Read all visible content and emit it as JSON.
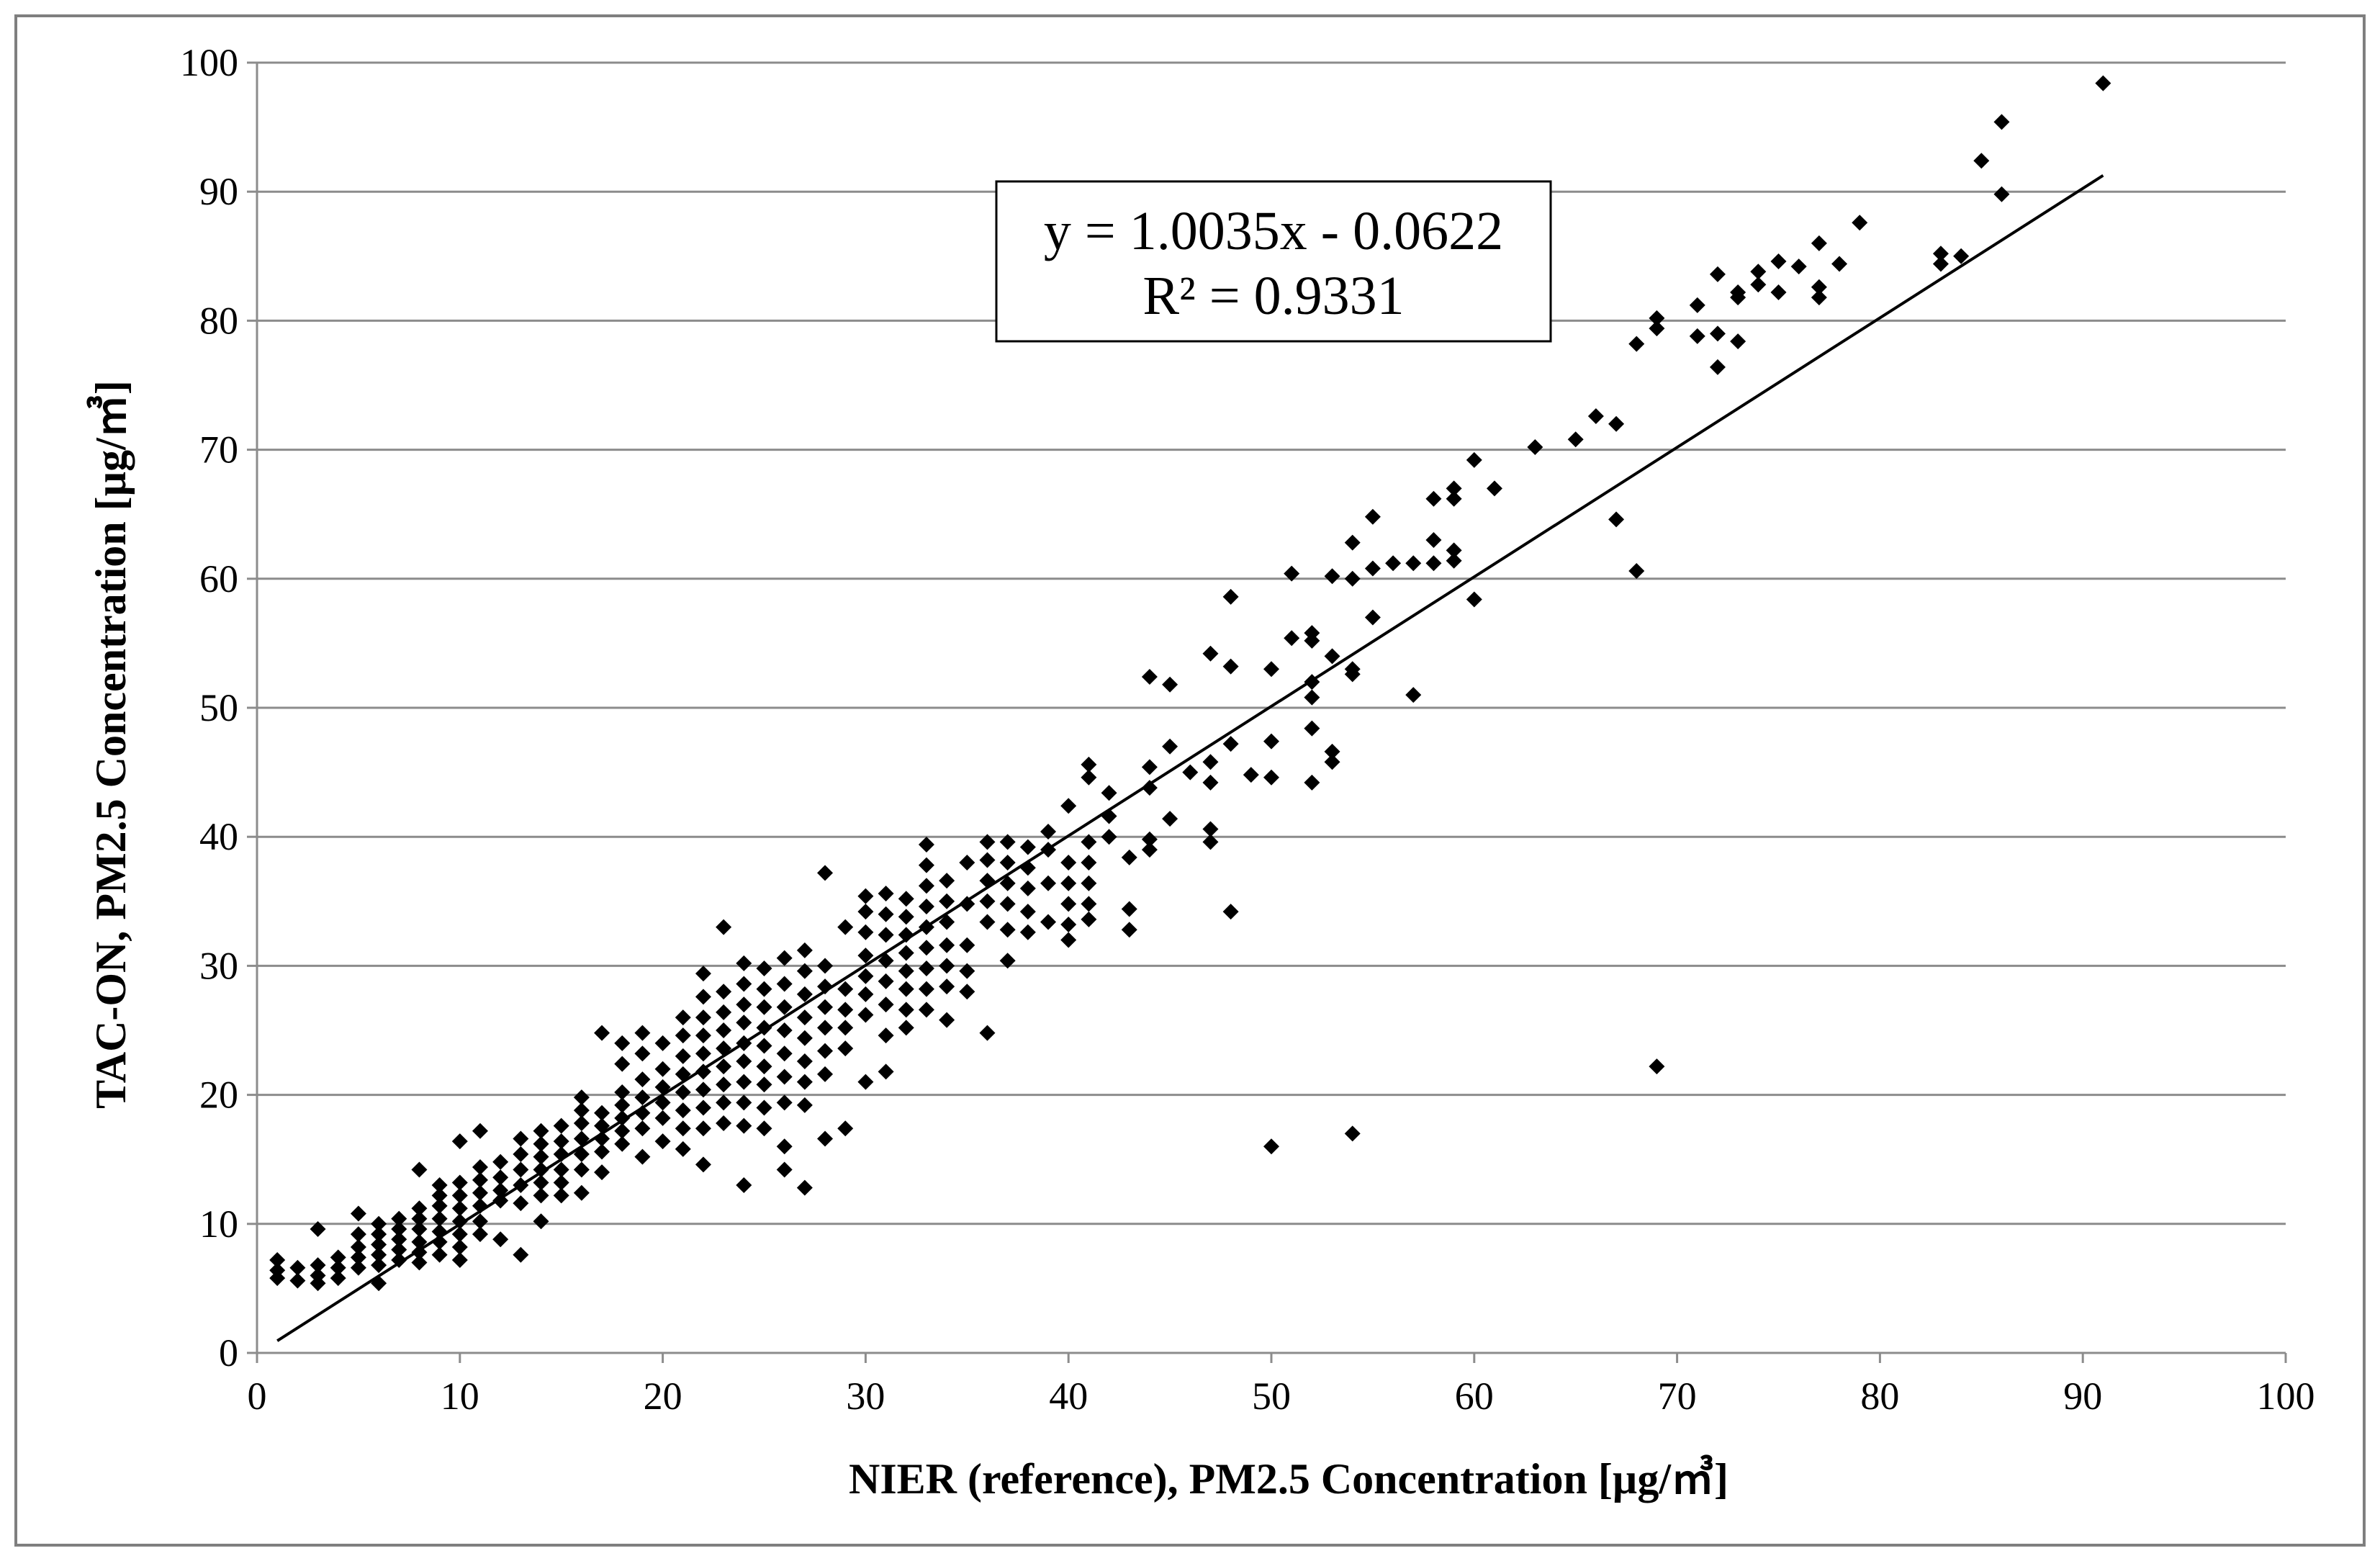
{
  "chart_data": {
    "type": "scatter",
    "xlabel": "NIER (reference), PM2.5 Concentration [µg/㎥]",
    "ylabel": "TAC-ON, PM2.5 Concentration [µg/㎥]",
    "xlim": [
      0,
      100
    ],
    "ylim": [
      0,
      100
    ],
    "x_ticks": [
      0,
      10,
      20,
      30,
      40,
      50,
      60,
      70,
      80,
      90,
      100
    ],
    "y_ticks": [
      0,
      10,
      20,
      30,
      40,
      50,
      60,
      70,
      80,
      90,
      100
    ],
    "grid": "horizontal",
    "marker": "diamond",
    "marker_color": "#000000",
    "trendline": {
      "equation": "y = 1.0035x - 0.0622",
      "r_squared": "R² = 0.9331",
      "slope": 1.0035,
      "intercept": -0.0622,
      "x_range": [
        1,
        91
      ]
    },
    "points": [
      [
        1,
        7.2
      ],
      [
        1,
        6.4
      ],
      [
        1,
        5.8
      ],
      [
        2,
        6.6
      ],
      [
        2,
        5.6
      ],
      [
        3,
        9.6
      ],
      [
        3,
        6.8
      ],
      [
        3,
        6.0
      ],
      [
        3,
        5.4
      ],
      [
        4,
        7.4
      ],
      [
        4,
        6.6
      ],
      [
        4,
        5.8
      ],
      [
        5,
        10.8
      ],
      [
        5,
        9.2
      ],
      [
        5,
        8.2
      ],
      [
        5,
        7.4
      ],
      [
        5,
        6.6
      ],
      [
        6,
        10.0
      ],
      [
        6,
        9.2
      ],
      [
        6,
        8.4
      ],
      [
        6,
        7.6
      ],
      [
        6,
        6.8
      ],
      [
        6,
        5.4
      ],
      [
        7,
        10.4
      ],
      [
        7,
        9.6
      ],
      [
        7,
        8.8
      ],
      [
        7,
        8.0
      ],
      [
        7,
        7.2
      ],
      [
        8,
        14.2
      ],
      [
        8,
        11.2
      ],
      [
        8,
        10.4
      ],
      [
        8,
        9.6
      ],
      [
        8,
        8.6
      ],
      [
        8,
        7.8
      ],
      [
        8,
        7.0
      ],
      [
        9,
        13.0
      ],
      [
        9,
        12.2
      ],
      [
        9,
        11.4
      ],
      [
        9,
        10.4
      ],
      [
        9,
        9.4
      ],
      [
        9,
        8.6
      ],
      [
        9,
        7.6
      ],
      [
        10,
        16.4
      ],
      [
        10,
        13.2
      ],
      [
        10,
        12.2
      ],
      [
        10,
        11.2
      ],
      [
        10,
        10.2
      ],
      [
        10,
        9.2
      ],
      [
        10,
        8.2
      ],
      [
        10,
        7.2
      ],
      [
        11,
        17.2
      ],
      [
        11,
        14.4
      ],
      [
        11,
        13.4
      ],
      [
        11,
        12.4
      ],
      [
        11,
        11.4
      ],
      [
        11,
        10.2
      ],
      [
        11,
        9.2
      ],
      [
        12,
        14.8
      ],
      [
        12,
        13.6
      ],
      [
        12,
        12.6
      ],
      [
        12,
        11.8
      ],
      [
        12,
        8.8
      ],
      [
        13,
        16.6
      ],
      [
        13,
        15.4
      ],
      [
        13,
        14.2
      ],
      [
        13,
        13.0
      ],
      [
        13,
        11.6
      ],
      [
        13,
        7.6
      ],
      [
        14,
        17.2
      ],
      [
        14,
        16.2
      ],
      [
        14,
        15.2
      ],
      [
        14,
        14.2
      ],
      [
        14,
        13.2
      ],
      [
        14,
        12.2
      ],
      [
        14,
        10.2
      ],
      [
        15,
        17.6
      ],
      [
        15,
        16.4
      ],
      [
        15,
        15.4
      ],
      [
        15,
        14.2
      ],
      [
        15,
        13.2
      ],
      [
        15,
        12.2
      ],
      [
        16,
        19.8
      ],
      [
        16,
        18.8
      ],
      [
        16,
        17.8
      ],
      [
        16,
        16.6
      ],
      [
        16,
        15.4
      ],
      [
        16,
        14.2
      ],
      [
        16,
        12.4
      ],
      [
        17,
        24.8
      ],
      [
        17,
        18.6
      ],
      [
        17,
        17.6
      ],
      [
        17,
        16.6
      ],
      [
        17,
        15.6
      ],
      [
        17,
        14.0
      ],
      [
        18,
        24.0
      ],
      [
        18,
        22.4
      ],
      [
        18,
        20.2
      ],
      [
        18,
        19.2
      ],
      [
        18,
        18.2
      ],
      [
        18,
        17.2
      ],
      [
        18,
        16.2
      ],
      [
        19,
        24.8
      ],
      [
        19,
        23.2
      ],
      [
        19,
        21.2
      ],
      [
        19,
        19.8
      ],
      [
        19,
        18.6
      ],
      [
        19,
        17.4
      ],
      [
        19,
        15.2
      ],
      [
        20,
        24.0
      ],
      [
        20,
        22.0
      ],
      [
        20,
        20.6
      ],
      [
        20,
        19.4
      ],
      [
        20,
        18.2
      ],
      [
        20,
        16.4
      ],
      [
        21,
        26.0
      ],
      [
        21,
        24.6
      ],
      [
        21,
        23.0
      ],
      [
        21,
        21.6
      ],
      [
        21,
        20.2
      ],
      [
        21,
        18.8
      ],
      [
        21,
        17.4
      ],
      [
        21,
        15.8
      ],
      [
        22,
        29.4
      ],
      [
        22,
        27.6
      ],
      [
        22,
        26.0
      ],
      [
        22,
        24.6
      ],
      [
        22,
        23.2
      ],
      [
        22,
        21.8
      ],
      [
        22,
        20.4
      ],
      [
        22,
        19.0
      ],
      [
        22,
        17.4
      ],
      [
        22,
        14.6
      ],
      [
        23,
        33.0
      ],
      [
        23,
        28.0
      ],
      [
        23,
        26.4
      ],
      [
        23,
        25.0
      ],
      [
        23,
        23.6
      ],
      [
        23,
        22.2
      ],
      [
        23,
        20.8
      ],
      [
        23,
        19.4
      ],
      [
        23,
        17.8
      ],
      [
        24,
        30.2
      ],
      [
        24,
        28.6
      ],
      [
        24,
        27.0
      ],
      [
        24,
        25.6
      ],
      [
        24,
        24.0
      ],
      [
        24,
        22.6
      ],
      [
        24,
        21.0
      ],
      [
        24,
        19.4
      ],
      [
        24,
        17.6
      ],
      [
        24,
        13.0
      ],
      [
        25,
        29.8
      ],
      [
        25,
        28.2
      ],
      [
        25,
        26.8
      ],
      [
        25,
        25.2
      ],
      [
        25,
        23.8
      ],
      [
        25,
        22.2
      ],
      [
        25,
        20.8
      ],
      [
        25,
        19.0
      ],
      [
        25,
        17.4
      ],
      [
        26,
        30.6
      ],
      [
        26,
        28.6
      ],
      [
        26,
        26.8
      ],
      [
        26,
        25.0
      ],
      [
        26,
        23.2
      ],
      [
        26,
        21.4
      ],
      [
        26,
        19.4
      ],
      [
        26,
        16.0
      ],
      [
        26,
        14.2
      ],
      [
        27,
        31.2
      ],
      [
        27,
        29.6
      ],
      [
        27,
        27.8
      ],
      [
        27,
        26.0
      ],
      [
        27,
        24.4
      ],
      [
        27,
        22.6
      ],
      [
        27,
        21.0
      ],
      [
        27,
        19.2
      ],
      [
        27,
        12.8
      ],
      [
        28,
        37.2
      ],
      [
        28,
        30.0
      ],
      [
        28,
        28.4
      ],
      [
        28,
        26.8
      ],
      [
        28,
        25.2
      ],
      [
        28,
        23.4
      ],
      [
        28,
        21.6
      ],
      [
        28,
        16.6
      ],
      [
        29,
        33.0
      ],
      [
        29,
        28.2
      ],
      [
        29,
        26.6
      ],
      [
        29,
        25.2
      ],
      [
        29,
        23.6
      ],
      [
        29,
        17.4
      ],
      [
        30,
        35.4
      ],
      [
        30,
        34.2
      ],
      [
        30,
        32.6
      ],
      [
        30,
        30.8
      ],
      [
        30,
        29.2
      ],
      [
        30,
        27.8
      ],
      [
        30,
        26.2
      ],
      [
        30,
        21.0
      ],
      [
        31,
        35.6
      ],
      [
        31,
        34.0
      ],
      [
        31,
        32.4
      ],
      [
        31,
        30.4
      ],
      [
        31,
        28.8
      ],
      [
        31,
        27.0
      ],
      [
        31,
        24.6
      ],
      [
        31,
        21.8
      ],
      [
        32,
        35.2
      ],
      [
        32,
        33.8
      ],
      [
        32,
        32.4
      ],
      [
        32,
        31.0
      ],
      [
        32,
        29.6
      ],
      [
        32,
        28.2
      ],
      [
        32,
        26.6
      ],
      [
        32,
        25.2
      ],
      [
        33,
        39.4
      ],
      [
        33,
        37.8
      ],
      [
        33,
        36.2
      ],
      [
        33,
        34.6
      ],
      [
        33,
        33.0
      ],
      [
        33,
        31.4
      ],
      [
        33,
        29.8
      ],
      [
        33,
        28.2
      ],
      [
        33,
        26.6
      ],
      [
        34,
        36.6
      ],
      [
        34,
        35.0
      ],
      [
        34,
        33.4
      ],
      [
        34,
        31.6
      ],
      [
        34,
        30.0
      ],
      [
        34,
        28.4
      ],
      [
        34,
        25.8
      ],
      [
        35,
        38.0
      ],
      [
        35,
        34.8
      ],
      [
        35,
        31.6
      ],
      [
        35,
        29.6
      ],
      [
        35,
        28.0
      ],
      [
        36,
        39.6
      ],
      [
        36,
        38.2
      ],
      [
        36,
        36.6
      ],
      [
        36,
        35.0
      ],
      [
        36,
        33.4
      ],
      [
        36,
        24.8
      ],
      [
        37,
        39.6
      ],
      [
        37,
        38.0
      ],
      [
        37,
        36.4
      ],
      [
        37,
        34.8
      ],
      [
        37,
        32.8
      ],
      [
        37,
        30.4
      ],
      [
        38,
        39.2
      ],
      [
        38,
        37.6
      ],
      [
        38,
        36.0
      ],
      [
        38,
        34.2
      ],
      [
        38,
        32.6
      ],
      [
        39,
        40.4
      ],
      [
        39,
        39.0
      ],
      [
        39,
        36.4
      ],
      [
        39,
        33.4
      ],
      [
        40,
        42.4
      ],
      [
        40,
        38.0
      ],
      [
        40,
        36.4
      ],
      [
        40,
        34.8
      ],
      [
        40,
        33.2
      ],
      [
        40,
        32.0
      ],
      [
        41,
        45.6
      ],
      [
        41,
        44.6
      ],
      [
        41,
        39.6
      ],
      [
        41,
        38.0
      ],
      [
        41,
        36.4
      ],
      [
        41,
        34.8
      ],
      [
        41,
        33.6
      ],
      [
        42,
        43.4
      ],
      [
        42,
        41.6
      ],
      [
        42,
        40.0
      ],
      [
        43,
        38.4
      ],
      [
        43,
        34.4
      ],
      [
        43,
        32.8
      ],
      [
        44,
        52.4
      ],
      [
        44,
        45.4
      ],
      [
        44,
        43.8
      ],
      [
        44,
        39.8
      ],
      [
        44,
        39.0
      ],
      [
        45,
        51.8
      ],
      [
        45,
        47.0
      ],
      [
        45,
        41.4
      ],
      [
        46,
        45.0
      ],
      [
        47,
        54.2
      ],
      [
        47,
        45.8
      ],
      [
        47,
        44.2
      ],
      [
        47,
        40.6
      ],
      [
        47,
        39.6
      ],
      [
        48,
        58.6
      ],
      [
        48,
        53.2
      ],
      [
        48,
        47.2
      ],
      [
        48,
        34.2
      ],
      [
        49,
        44.8
      ],
      [
        50,
        53.0
      ],
      [
        50,
        47.4
      ],
      [
        50,
        44.6
      ],
      [
        50,
        16.0
      ],
      [
        51,
        60.4
      ],
      [
        51,
        55.4
      ],
      [
        52,
        55.8
      ],
      [
        52,
        55.2
      ],
      [
        52,
        52.0
      ],
      [
        52,
        50.8
      ],
      [
        52,
        48.4
      ],
      [
        52,
        44.2
      ],
      [
        53,
        60.2
      ],
      [
        53,
        54.0
      ],
      [
        53,
        46.6
      ],
      [
        53,
        45.8
      ],
      [
        54,
        62.8
      ],
      [
        54,
        60.0
      ],
      [
        54,
        53.0
      ],
      [
        54,
        52.6
      ],
      [
        54,
        17.0
      ],
      [
        55,
        64.8
      ],
      [
        55,
        60.8
      ],
      [
        55,
        57.0
      ],
      [
        56,
        61.2
      ],
      [
        57,
        61.2
      ],
      [
        57,
        51.0
      ],
      [
        58,
        66.2
      ],
      [
        58,
        63.0
      ],
      [
        58,
        61.2
      ],
      [
        59,
        67.0
      ],
      [
        59,
        66.2
      ],
      [
        59,
        62.2
      ],
      [
        59,
        61.4
      ],
      [
        60,
        69.2
      ],
      [
        60,
        58.4
      ],
      [
        61,
        67.0
      ],
      [
        63,
        70.2
      ],
      [
        65,
        70.8
      ],
      [
        66,
        72.6
      ],
      [
        67,
        72.0
      ],
      [
        67,
        64.6
      ],
      [
        68,
        78.2
      ],
      [
        68,
        60.6
      ],
      [
        69,
        80.2
      ],
      [
        69,
        79.4
      ],
      [
        69,
        22.2
      ],
      [
        71,
        81.2
      ],
      [
        71,
        78.8
      ],
      [
        72,
        83.6
      ],
      [
        72,
        79.0
      ],
      [
        72,
        76.4
      ],
      [
        73,
        82.2
      ],
      [
        73,
        81.8
      ],
      [
        73,
        78.4
      ],
      [
        74,
        83.8
      ],
      [
        74,
        82.8
      ],
      [
        75,
        84.6
      ],
      [
        75,
        82.2
      ],
      [
        76,
        84.2
      ],
      [
        77,
        86.0
      ],
      [
        77,
        82.6
      ],
      [
        77,
        81.8
      ],
      [
        78,
        84.4
      ],
      [
        79,
        87.6
      ],
      [
        83,
        85.2
      ],
      [
        83,
        84.4
      ],
      [
        84,
        85.0
      ],
      [
        85,
        92.4
      ],
      [
        86,
        95.4
      ],
      [
        86,
        89.8
      ],
      [
        91,
        98.4
      ]
    ]
  }
}
